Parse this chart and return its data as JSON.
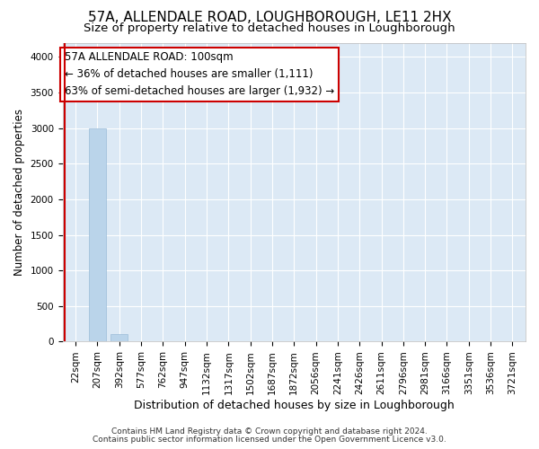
{
  "title": "57A, ALLENDALE ROAD, LOUGHBOROUGH, LE11 2HX",
  "subtitle": "Size of property relative to detached houses in Loughborough",
  "xlabel": "Distribution of detached houses by size in Loughborough",
  "ylabel": "Number of detached properties",
  "footer_line1": "Contains HM Land Registry data © Crown copyright and database right 2024.",
  "footer_line2": "Contains public sector information licensed under the Open Government Licence v3.0.",
  "bar_labels": [
    "22sqm",
    "207sqm",
    "392sqm",
    "577sqm",
    "762sqm",
    "947sqm",
    "1132sqm",
    "1317sqm",
    "1502sqm",
    "1687sqm",
    "1872sqm",
    "2056sqm",
    "2241sqm",
    "2426sqm",
    "2611sqm",
    "2796sqm",
    "2981sqm",
    "3166sqm",
    "3351sqm",
    "3536sqm",
    "3721sqm"
  ],
  "bar_heights": [
    0,
    3000,
    110,
    0,
    0,
    0,
    0,
    0,
    0,
    0,
    0,
    0,
    0,
    0,
    0,
    0,
    0,
    0,
    0,
    0,
    0
  ],
  "bar_color": "#bad4ea",
  "bar_edge_color": "#9bbcd8",
  "annotation_line1": "57A ALLENDALE ROAD: 100sqm",
  "annotation_line2": "← 36% of detached houses are smaller (1,111)",
  "annotation_line3": "63% of semi-detached houses are larger (1,932) →",
  "annotation_box_facecolor": "#ffffff",
  "annotation_box_edgecolor": "#cc0000",
  "red_line_x": -0.5,
  "ylim": [
    0,
    4200
  ],
  "yticks": [
    0,
    500,
    1000,
    1500,
    2000,
    2500,
    3000,
    3500,
    4000
  ],
  "fig_bg_color": "#ffffff",
  "plot_bg_color": "#dce9f5",
  "grid_color": "#ffffff",
  "title_fontsize": 11,
  "subtitle_fontsize": 9.5,
  "xlabel_fontsize": 9,
  "ylabel_fontsize": 8.5,
  "tick_fontsize": 7.5,
  "annotation_fontsize": 8.5,
  "footer_fontsize": 6.5
}
